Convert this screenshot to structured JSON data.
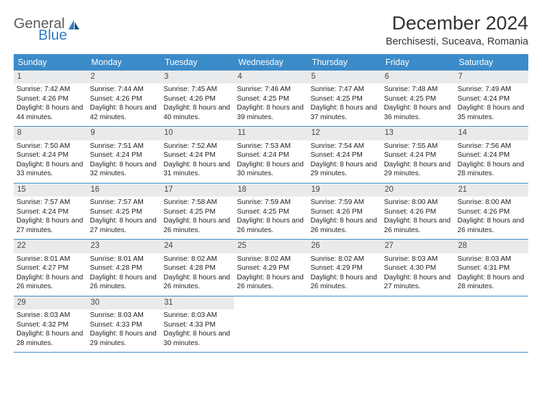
{
  "brand": {
    "line1": "General",
    "line2": "Blue",
    "color1": "#5a5a5a",
    "color2": "#2f7cc4"
  },
  "title": "December 2024",
  "location": "Berchisesti, Suceava, Romania",
  "header_bg": "#3b8bc9",
  "daynum_bg": "#e9eaeb",
  "weekdays": [
    "Sunday",
    "Monday",
    "Tuesday",
    "Wednesday",
    "Thursday",
    "Friday",
    "Saturday"
  ],
  "weeks": [
    [
      {
        "n": "1",
        "sr": "7:42 AM",
        "ss": "4:26 PM",
        "dl": "8 hours and 44 minutes."
      },
      {
        "n": "2",
        "sr": "7:44 AM",
        "ss": "4:26 PM",
        "dl": "8 hours and 42 minutes."
      },
      {
        "n": "3",
        "sr": "7:45 AM",
        "ss": "4:26 PM",
        "dl": "8 hours and 40 minutes."
      },
      {
        "n": "4",
        "sr": "7:46 AM",
        "ss": "4:25 PM",
        "dl": "8 hours and 39 minutes."
      },
      {
        "n": "5",
        "sr": "7:47 AM",
        "ss": "4:25 PM",
        "dl": "8 hours and 37 minutes."
      },
      {
        "n": "6",
        "sr": "7:48 AM",
        "ss": "4:25 PM",
        "dl": "8 hours and 36 minutes."
      },
      {
        "n": "7",
        "sr": "7:49 AM",
        "ss": "4:24 PM",
        "dl": "8 hours and 35 minutes."
      }
    ],
    [
      {
        "n": "8",
        "sr": "7:50 AM",
        "ss": "4:24 PM",
        "dl": "8 hours and 33 minutes."
      },
      {
        "n": "9",
        "sr": "7:51 AM",
        "ss": "4:24 PM",
        "dl": "8 hours and 32 minutes."
      },
      {
        "n": "10",
        "sr": "7:52 AM",
        "ss": "4:24 PM",
        "dl": "8 hours and 31 minutes."
      },
      {
        "n": "11",
        "sr": "7:53 AM",
        "ss": "4:24 PM",
        "dl": "8 hours and 30 minutes."
      },
      {
        "n": "12",
        "sr": "7:54 AM",
        "ss": "4:24 PM",
        "dl": "8 hours and 29 minutes."
      },
      {
        "n": "13",
        "sr": "7:55 AM",
        "ss": "4:24 PM",
        "dl": "8 hours and 29 minutes."
      },
      {
        "n": "14",
        "sr": "7:56 AM",
        "ss": "4:24 PM",
        "dl": "8 hours and 28 minutes."
      }
    ],
    [
      {
        "n": "15",
        "sr": "7:57 AM",
        "ss": "4:24 PM",
        "dl": "8 hours and 27 minutes."
      },
      {
        "n": "16",
        "sr": "7:57 AM",
        "ss": "4:25 PM",
        "dl": "8 hours and 27 minutes."
      },
      {
        "n": "17",
        "sr": "7:58 AM",
        "ss": "4:25 PM",
        "dl": "8 hours and 26 minutes."
      },
      {
        "n": "18",
        "sr": "7:59 AM",
        "ss": "4:25 PM",
        "dl": "8 hours and 26 minutes."
      },
      {
        "n": "19",
        "sr": "7:59 AM",
        "ss": "4:26 PM",
        "dl": "8 hours and 26 minutes."
      },
      {
        "n": "20",
        "sr": "8:00 AM",
        "ss": "4:26 PM",
        "dl": "8 hours and 26 minutes."
      },
      {
        "n": "21",
        "sr": "8:00 AM",
        "ss": "4:26 PM",
        "dl": "8 hours and 26 minutes."
      }
    ],
    [
      {
        "n": "22",
        "sr": "8:01 AM",
        "ss": "4:27 PM",
        "dl": "8 hours and 26 minutes."
      },
      {
        "n": "23",
        "sr": "8:01 AM",
        "ss": "4:28 PM",
        "dl": "8 hours and 26 minutes."
      },
      {
        "n": "24",
        "sr": "8:02 AM",
        "ss": "4:28 PM",
        "dl": "8 hours and 26 minutes."
      },
      {
        "n": "25",
        "sr": "8:02 AM",
        "ss": "4:29 PM",
        "dl": "8 hours and 26 minutes."
      },
      {
        "n": "26",
        "sr": "8:02 AM",
        "ss": "4:29 PM",
        "dl": "8 hours and 26 minutes."
      },
      {
        "n": "27",
        "sr": "8:03 AM",
        "ss": "4:30 PM",
        "dl": "8 hours and 27 minutes."
      },
      {
        "n": "28",
        "sr": "8:03 AM",
        "ss": "4:31 PM",
        "dl": "8 hours and 28 minutes."
      }
    ],
    [
      {
        "n": "29",
        "sr": "8:03 AM",
        "ss": "4:32 PM",
        "dl": "8 hours and 28 minutes."
      },
      {
        "n": "30",
        "sr": "8:03 AM",
        "ss": "4:33 PM",
        "dl": "8 hours and 29 minutes."
      },
      {
        "n": "31",
        "sr": "8:03 AM",
        "ss": "4:33 PM",
        "dl": "8 hours and 30 minutes."
      },
      {
        "empty": true
      },
      {
        "empty": true
      },
      {
        "empty": true
      },
      {
        "empty": true
      }
    ]
  ],
  "labels": {
    "sunrise": "Sunrise:",
    "sunset": "Sunset:",
    "daylight": "Daylight:"
  }
}
